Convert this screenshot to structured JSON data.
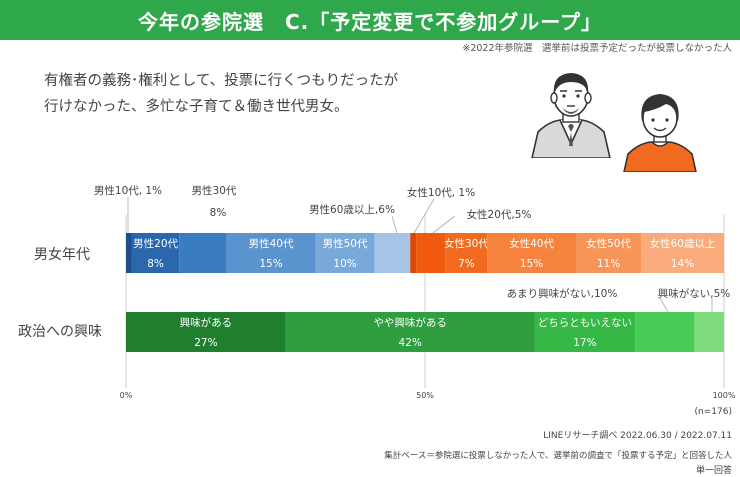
{
  "header": {
    "title": "今年の参院選　C.「予定変更で不参加グループ」"
  },
  "note_top": "※2022年参院選　選挙前は投票予定だったが投票しなかった人",
  "description": [
    "有権者の義務･権利として、投票に行くつもりだったが",
    "行けなかった、多忙な子育て＆働き世代男女。"
  ],
  "chart_data": {
    "type": "bar",
    "orientation": "horizontal-stacked-100",
    "xlim": [
      0,
      100
    ],
    "x_ticks": [
      "0%",
      "50%",
      "100%"
    ],
    "categories": [
      "男女年代",
      "政治への興味"
    ],
    "rows": [
      {
        "label": "男女年代",
        "segments": [
          {
            "name": "男性10代",
            "value": 1,
            "label": "男性10代",
            "value_label": "1%",
            "color": "#1e4f8c"
          },
          {
            "name": "男性20代",
            "value": 8,
            "label": "男性20代",
            "value_label": "8%",
            "color": "#2a67ad"
          },
          {
            "name": "男性30代",
            "value": 8,
            "label": "男性30代",
            "value_label": "8%",
            "color": "#3a7cc0"
          },
          {
            "name": "男性40代",
            "value": 15,
            "label": "男性40代",
            "value_label": "15%",
            "color": "#5b93cf"
          },
          {
            "name": "男性50代",
            "value": 10,
            "label": "男性50代",
            "value_label": "10%",
            "color": "#79a9d9"
          },
          {
            "name": "男性60歳以上",
            "value": 6,
            "label": "男性60歳以上",
            "value_label": "6%",
            "color": "#a5c4e6"
          },
          {
            "name": "女性10代",
            "value": 1,
            "label": "女性10代",
            "value_label": "1%",
            "color": "#d94a0a"
          },
          {
            "name": "女性20代",
            "value": 5,
            "label": "女性20代",
            "value_label": "5%",
            "color": "#ef5a0f"
          },
          {
            "name": "女性30代",
            "value": 7,
            "label": "女性30代",
            "value_label": "7%",
            "color": "#f26a1f"
          },
          {
            "name": "女性40代",
            "value": 15,
            "label": "女性40代",
            "value_label": "15%",
            "color": "#f5823d"
          },
          {
            "name": "女性50代",
            "value": 11,
            "label": "女性50代",
            "value_label": "11%",
            "color": "#f79559"
          },
          {
            "name": "女性60歳以上",
            "value": 14,
            "label": "女性60歳以上",
            "value_label": "14%",
            "color": "#f9ab7b"
          }
        ]
      },
      {
        "label": "政治への興味",
        "segments": [
          {
            "name": "興味がある",
            "value": 27,
            "label": "興味がある",
            "value_label": "27%",
            "color": "#1f7f2f"
          },
          {
            "name": "やや興味がある",
            "value": 42,
            "label": "やや興味がある",
            "value_label": "42%",
            "color": "#2e9e3e"
          },
          {
            "name": "どちらともいえない",
            "value": 17,
            "label": "どちらともいえない",
            "value_label": "17%",
            "color": "#35b846"
          },
          {
            "name": "あまり興味がない",
            "value": 10,
            "label": "あまり興味がない",
            "value_label": "10%",
            "color": "#48cc55"
          },
          {
            "name": "興味がない",
            "value": 5,
            "label": "興味がない",
            "value_label": "5%",
            "color": "#7fdc7d"
          }
        ]
      }
    ],
    "outside_labels": [
      {
        "text": "男性10代, 1%"
      },
      {
        "text": "男性30代"
      },
      {
        "text": "8%"
      },
      {
        "text": "男性60歳以上,6%"
      },
      {
        "text": "女性10代, 1%"
      },
      {
        "text": "女性20代,5%"
      },
      {
        "text": "あまり興味がない,10%"
      },
      {
        "text": "興味がない,5%"
      }
    ]
  },
  "footer": {
    "n": "(n=176)",
    "source": "LINEリサーチ調べ 2022.06.30 / 2022.07.11",
    "base": "集計ベース＝参院選に投票しなかった人で、選挙前の調査で「投票する予定」と回答した人",
    "answer": "単一回答"
  }
}
